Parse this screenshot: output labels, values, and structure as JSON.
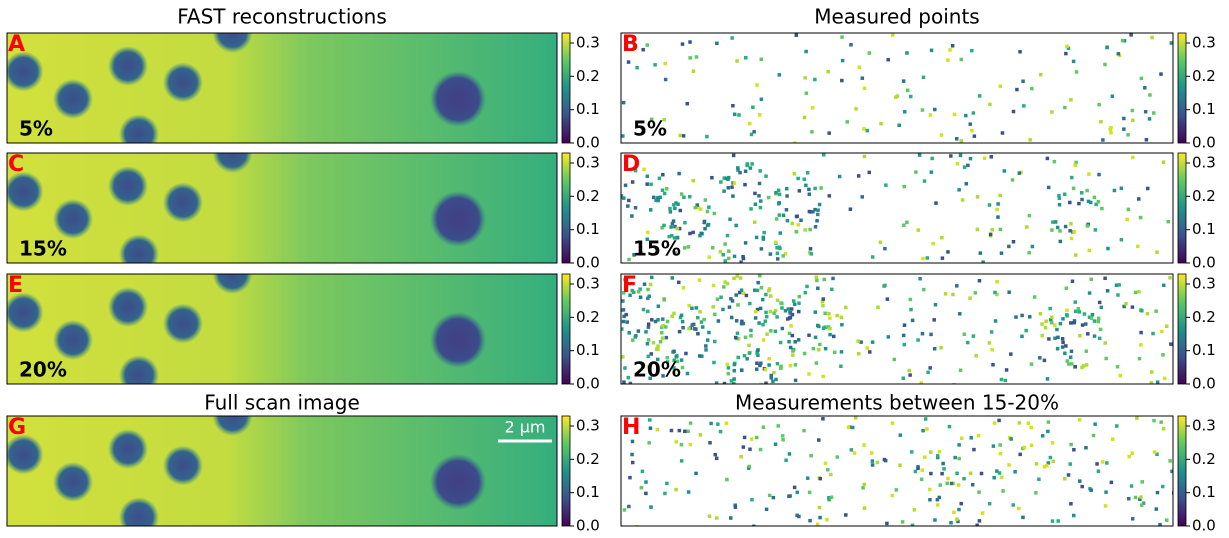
{
  "titles": {
    "left_top": "FAST reconstructions",
    "right_top": "Measured points",
    "left_bottom": "Full scan image",
    "right_bottom": "Measurements between 15-20%"
  },
  "panels": [
    {
      "label": "A",
      "percent": "5%"
    },
    {
      "label": "B",
      "percent": "5%"
    },
    {
      "label": "C",
      "percent": "15%"
    },
    {
      "label": "D",
      "percent": "15%"
    },
    {
      "label": "E",
      "percent": "20%"
    },
    {
      "label": "F",
      "percent": "20%"
    },
    {
      "label": "G"
    },
    {
      "label": "H"
    }
  ],
  "scale_bar": "2 µm",
  "colorbar": {
    "lim": [
      0,
      0.33
    ],
    "ticks": [
      {
        "value": 0,
        "label": "0.0"
      },
      {
        "value": 0.1,
        "label": "0.1"
      },
      {
        "value": 0.2,
        "label": "0.2"
      },
      {
        "value": 0.3,
        "label": "0.3"
      }
    ]
  }
}
